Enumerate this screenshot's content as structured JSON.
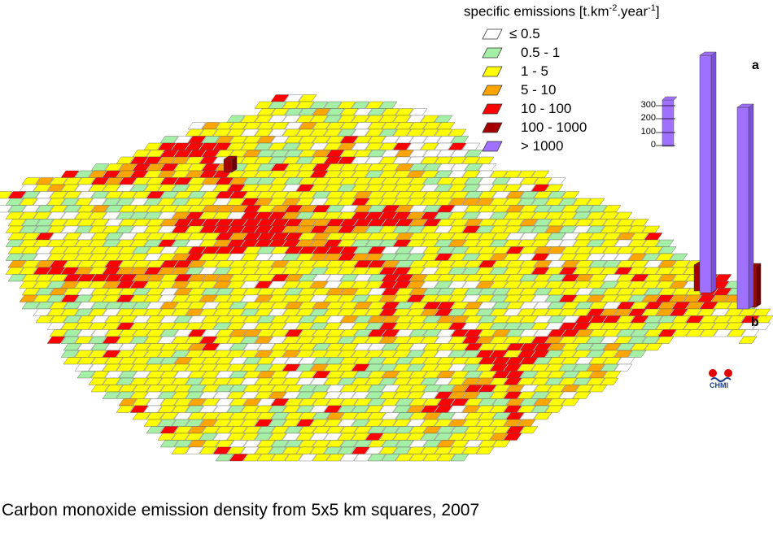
{
  "legend": {
    "title_main": "specific emissions [t.km",
    "title_sup1": "-2",
    "title_mid": ".year",
    "title_sup2": "-1",
    "title_end": "]",
    "items": [
      {
        "label": "≤ 0.5",
        "color": "#ffffff"
      },
      {
        "label": "0.5 - 1",
        "color": "#a6efa6"
      },
      {
        "label": "1 - 5",
        "color": "#ffff00"
      },
      {
        "label": "5 - 10",
        "color": "#ffa500"
      },
      {
        "label": "10 - 100",
        "color": "#ff0000"
      },
      {
        "label": "100 - 1000",
        "color": "#a50000"
      },
      {
        "label": "> 1000",
        "color": "#a070ff"
      }
    ]
  },
  "scale_bar": {
    "ticks": [
      "300",
      "200",
      "100",
      "0"
    ],
    "color": "#a070ff"
  },
  "point_labels": {
    "a": "a",
    "b": "b"
  },
  "logo": {
    "text": "CHMI"
  },
  "caption": "Carbon monoxide emission density from 5x5 km squares, 2007"
}
